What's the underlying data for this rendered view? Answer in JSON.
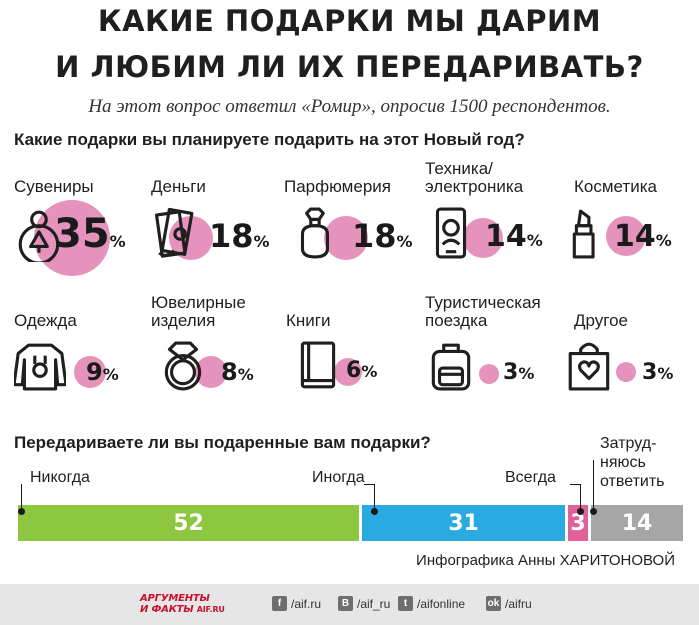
{
  "title": {
    "line1": "Какие подарки мы дарим",
    "line2": "и любим ли их передаривать?"
  },
  "subtitle": "На этот вопрос ответил «Ромир», опросив 1500 респондентов.",
  "question1": "Какие подарки вы планируете подарить на этот Новый год?",
  "question2": "Передариваете ли вы подаренные вам подарки?",
  "percent_sign": "%",
  "credit": "Инфографика Анны ХАРИТОНОВОЙ",
  "footer": {
    "logo_line1": "АРГУМЕНТЫ",
    "logo_line2": "И ФАКТЫ",
    "logo_site": "AIF.RU",
    "social": [
      {
        "icon": "facebook-icon",
        "glyph": "f",
        "label": "/aif.ru"
      },
      {
        "icon": "vk-icon",
        "glyph": "В",
        "label": "/aif_ru"
      },
      {
        "icon": "twitter-icon",
        "glyph": "t",
        "label": "/aifonline"
      },
      {
        "icon": "odnoklassniki-icon",
        "glyph": "ok",
        "label": "/aifru"
      }
    ]
  },
  "chart_data": [
    {
      "type": "bubble",
      "title": "Какие подарки вы планируете подарить на этот Новый год?",
      "unit": "%",
      "categories": [
        {
          "label": "Сувениры",
          "value": 35,
          "icon": "souvenir-ornament-icon"
        },
        {
          "label": "Деньги",
          "value": 18,
          "icon": "money-icon"
        },
        {
          "label": "Парфюмерия",
          "value": 18,
          "icon": "perfume-icon"
        },
        {
          "label": "Техника/ электроника",
          "value": 14,
          "icon": "smartphone-icon"
        },
        {
          "label": "Косметика",
          "value": 14,
          "icon": "lipstick-icon"
        },
        {
          "label": "Одежда",
          "value": 9,
          "icon": "sweater-icon"
        },
        {
          "label": "Ювелирные изделия",
          "value": 8,
          "icon": "ring-icon"
        },
        {
          "label": "Книги",
          "value": 6,
          "icon": "book-icon"
        },
        {
          "label": "Туристическая поездка",
          "value": 3,
          "icon": "backpack-icon"
        },
        {
          "label": "Другое",
          "value": 3,
          "icon": "gift-bag-icon"
        }
      ],
      "bubble_color": "#e07fb0"
    },
    {
      "type": "stacked-bar",
      "title": "Передариваете ли вы подаренные вам подарки?",
      "unit": "%",
      "categories": [
        "Никогда",
        "Иногда",
        "Всегда",
        "Затруд- няюсь ответить"
      ],
      "values": [
        52,
        31,
        3,
        14
      ],
      "colors": [
        "#8dc63f",
        "#29abe2",
        "#e0609a",
        "#a6a6a6"
      ]
    }
  ]
}
